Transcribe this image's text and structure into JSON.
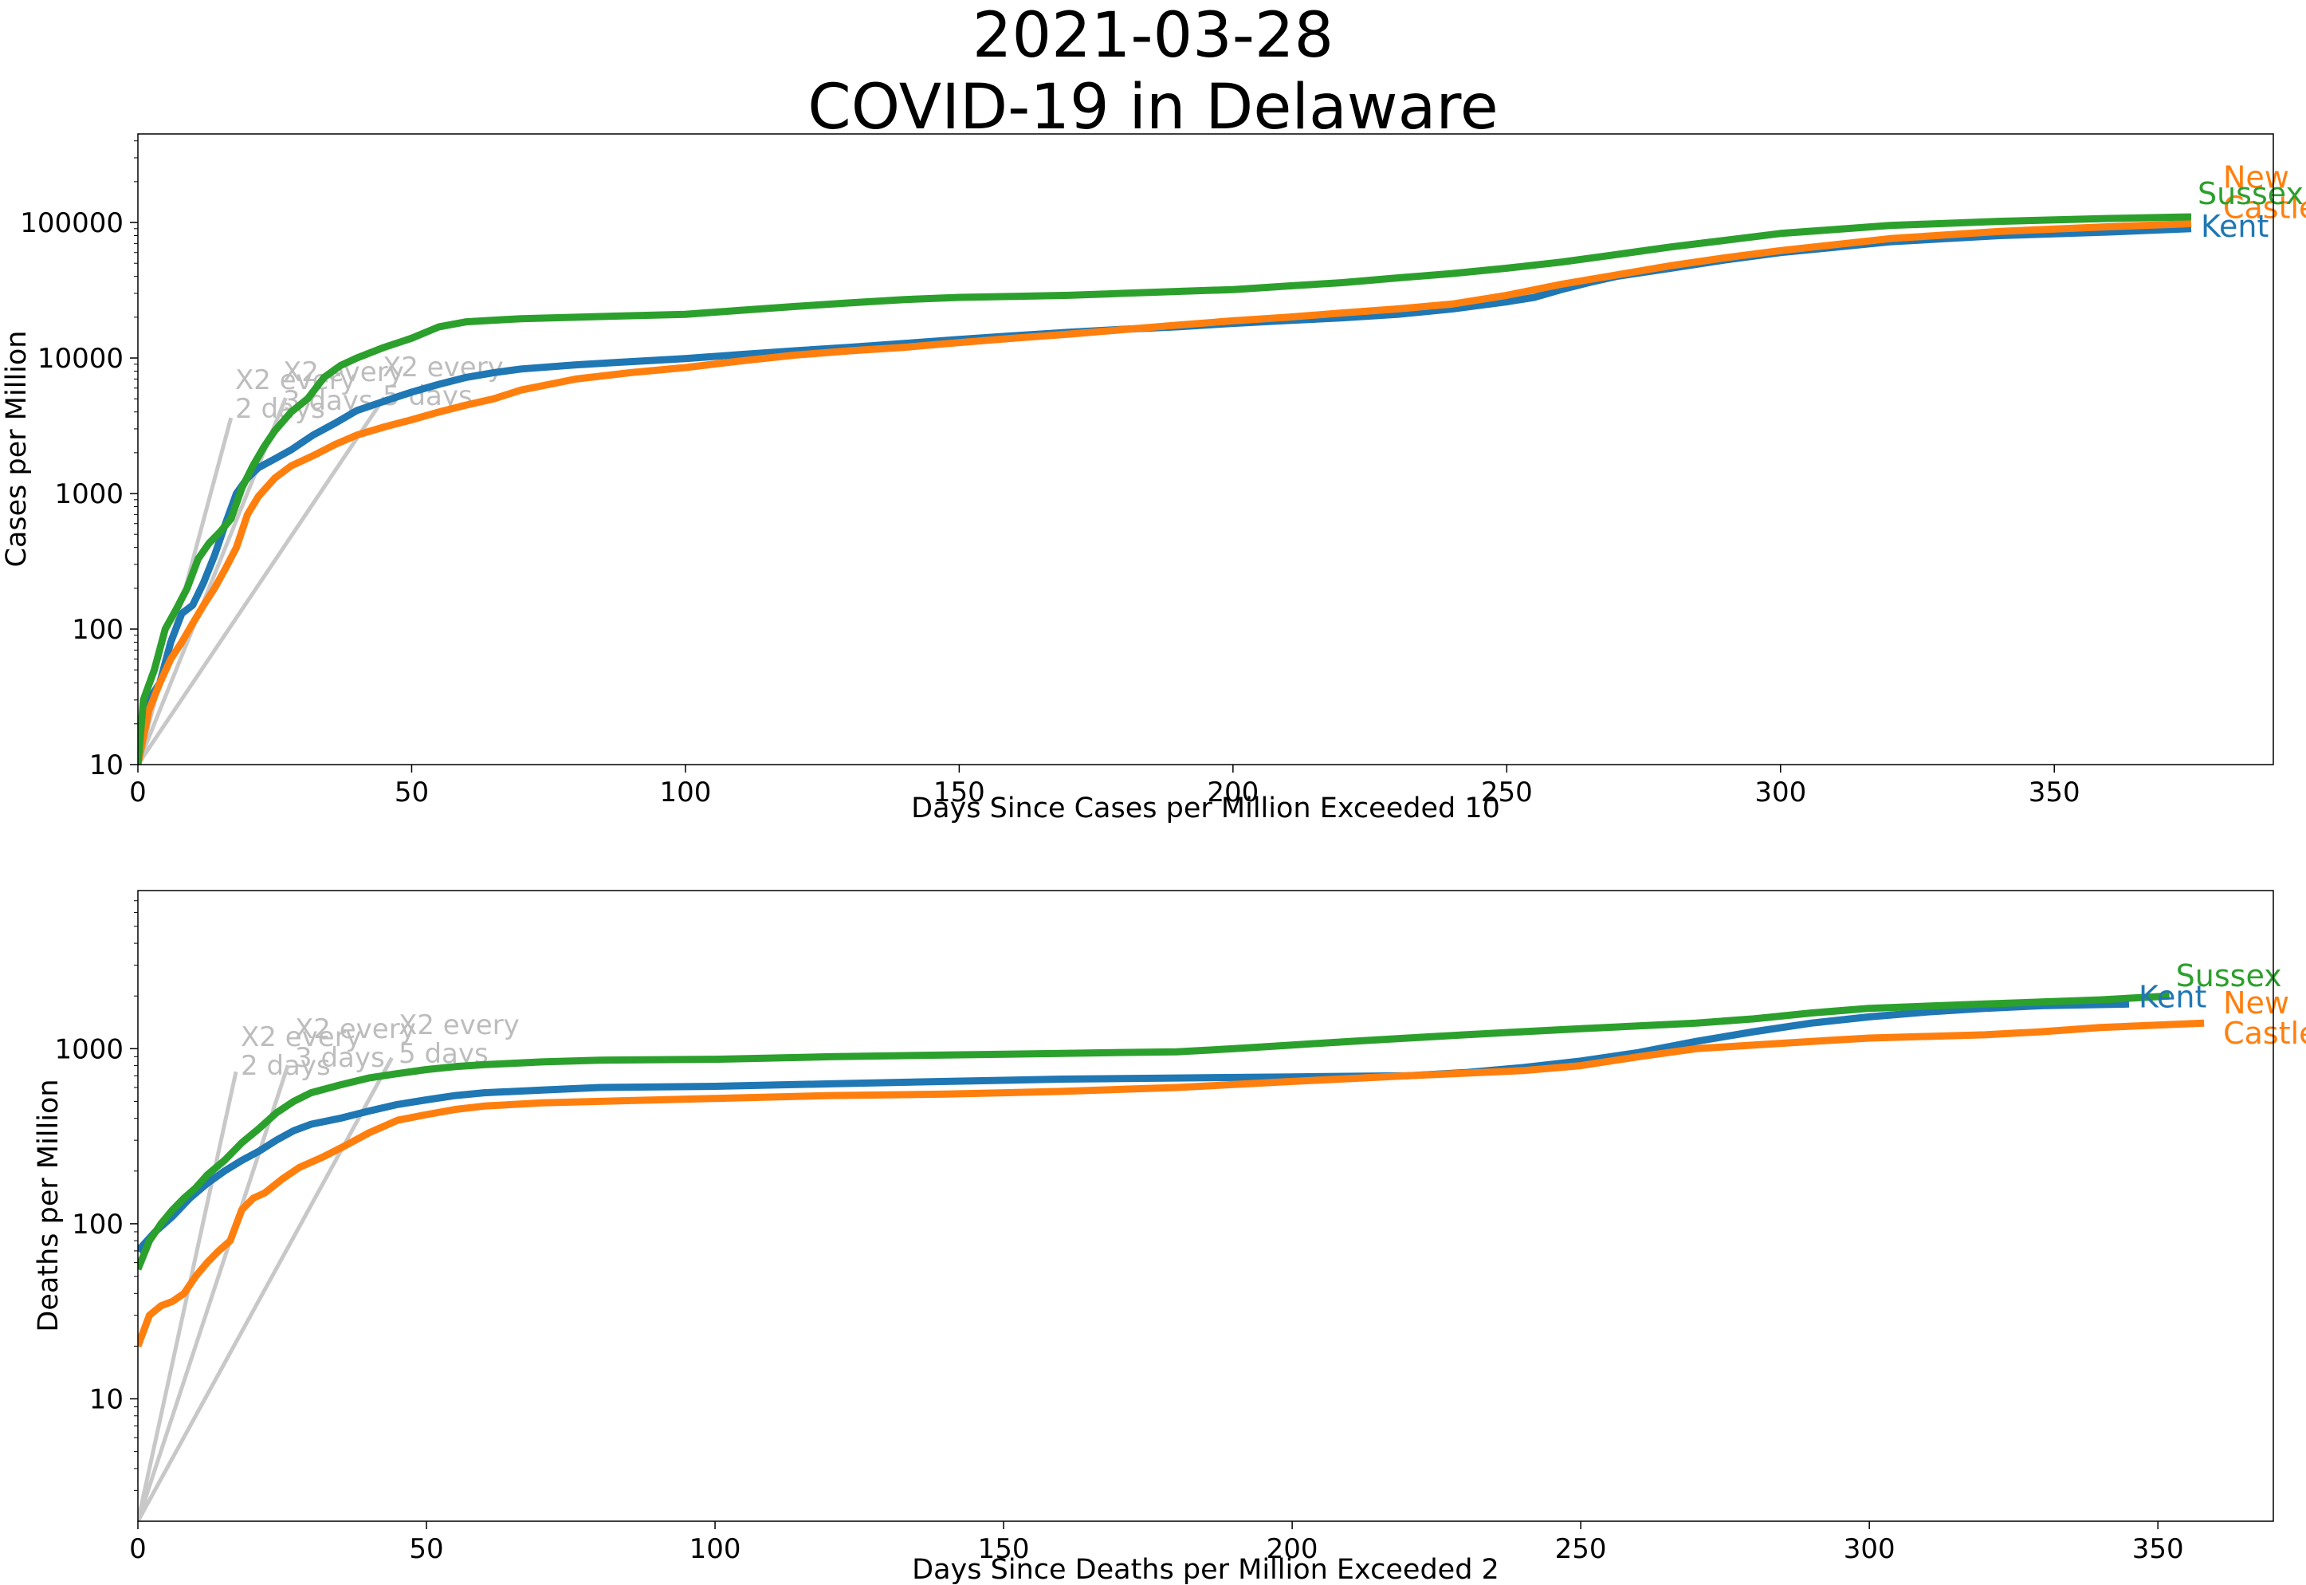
{
  "title_line1": "2021-03-28",
  "title_line2": "COVID-19 in Delaware",
  "colors": {
    "Kent": "#1f77b4",
    "New Castle": "#ff7f0e",
    "Sussex": "#2ca02c",
    "guide": "#c8c8c8"
  },
  "chart_data": [
    {
      "type": "line",
      "xlabel": "Days Since Cases per Million Exceeded 10",
      "ylabel": "Cases per Million",
      "yscale": "log",
      "xlim": [
        0,
        390
      ],
      "ylim": [
        10,
        450000
      ],
      "xticks": [
        0,
        50,
        100,
        150,
        200,
        250,
        300,
        350
      ],
      "yticks": [
        10,
        100,
        1000,
        10000,
        100000
      ],
      "grid": false,
      "guides": [
        {
          "label": "X2 every\n2 days",
          "x": [
            0,
            17
          ],
          "y": [
            10,
            3620
          ]
        },
        {
          "label": "X2 every\n3 days",
          "x": [
            0,
            27
          ],
          "y": [
            10,
            5080
          ]
        },
        {
          "label": "X2 every\n5 days",
          "x": [
            0,
            45
          ],
          "y": [
            10,
            5120
          ]
        }
      ],
      "series": [
        {
          "name": "Kent",
          "x": [
            0,
            2,
            4,
            6,
            8,
            10,
            12,
            14,
            16,
            18,
            20,
            22,
            25,
            28,
            32,
            36,
            40,
            45,
            50,
            55,
            60,
            65,
            70,
            80,
            90,
            100,
            110,
            120,
            130,
            140,
            150,
            160,
            170,
            180,
            190,
            200,
            210,
            220,
            230,
            240,
            250,
            255,
            260,
            265,
            270,
            280,
            290,
            300,
            320,
            340,
            360,
            375
          ],
          "y": [
            10,
            30,
            40,
            80,
            130,
            150,
            220,
            350,
            600,
            1000,
            1300,
            1550,
            1800,
            2100,
            2700,
            3300,
            4100,
            4800,
            5600,
            6400,
            7200,
            7800,
            8300,
            8900,
            9400,
            9900,
            10600,
            11300,
            12000,
            12800,
            13700,
            14600,
            15500,
            16300,
            17000,
            18000,
            18900,
            19800,
            21000,
            23000,
            26000,
            28000,
            32000,
            36000,
            40000,
            46000,
            53000,
            60000,
            72000,
            80000,
            85000,
            90000
          ]
        },
        {
          "name": "New Castle",
          "x": [
            0,
            2,
            4,
            6,
            8,
            10,
            12,
            14,
            16,
            18,
            20,
            22,
            25,
            28,
            32,
            36,
            40,
            45,
            50,
            55,
            60,
            65,
            70,
            80,
            90,
            100,
            110,
            120,
            130,
            140,
            150,
            160,
            170,
            180,
            190,
            200,
            210,
            220,
            230,
            240,
            250,
            260,
            270,
            280,
            290,
            300,
            320,
            340,
            360,
            375
          ],
          "y": [
            10,
            25,
            40,
            60,
            80,
            110,
            150,
            200,
            280,
            400,
            700,
            950,
            1300,
            1600,
            1900,
            2300,
            2700,
            3100,
            3500,
            4000,
            4500,
            5000,
            5800,
            7000,
            7800,
            8500,
            9500,
            10500,
            11300,
            12000,
            13000,
            14000,
            15000,
            16200,
            17500,
            18800,
            20000,
            21500,
            23000,
            25000,
            29000,
            35000,
            41000,
            48000,
            55000,
            62000,
            76000,
            86000,
            93000,
            98000
          ]
        },
        {
          "name": "Sussex",
          "x": [
            0,
            1,
            3,
            5,
            7,
            9,
            11,
            13,
            15,
            17,
            19,
            21,
            23,
            25,
            28,
            31,
            34,
            37,
            40,
            45,
            50,
            55,
            60,
            65,
            70,
            80,
            90,
            100,
            110,
            120,
            130,
            140,
            150,
            160,
            170,
            180,
            190,
            200,
            210,
            220,
            230,
            240,
            250,
            260,
            270,
            280,
            290,
            300,
            320,
            340,
            360,
            375
          ],
          "y": [
            10,
            30,
            50,
            100,
            140,
            200,
            330,
            430,
            520,
            650,
            1100,
            1600,
            2200,
            2900,
            4000,
            5000,
            7200,
            8800,
            10000,
            12000,
            14000,
            17000,
            18500,
            19000,
            19500,
            20000,
            20500,
            21000,
            22500,
            24000,
            25500,
            27000,
            28000,
            28500,
            29000,
            30000,
            31000,
            32000,
            34000,
            36000,
            39000,
            42000,
            46000,
            51000,
            58000,
            66000,
            74000,
            83000,
            95000,
            102000,
            107000,
            110000
          ]
        }
      ],
      "end_labels": [
        {
          "series": "New Castle",
          "text": "New\nCastle"
        },
        {
          "series": "Sussex",
          "text": "Sussex"
        },
        {
          "series": "Kent",
          "text": "Kent"
        }
      ]
    },
    {
      "type": "line",
      "xlabel": "Days Since Deaths per Million Exceeded 2",
      "ylabel": "Deaths per Million",
      "yscale": "log",
      "xlim": [
        0,
        370
      ],
      "ylim": [
        2,
        8000
      ],
      "xticks": [
        0,
        50,
        100,
        150,
        200,
        250,
        300,
        350
      ],
      "yticks": [
        10,
        100,
        1000
      ],
      "grid": false,
      "guides": [
        {
          "label": "X2 every\n2 days",
          "x": [
            0,
            17
          ],
          "y": [
            2,
            739
          ]
        },
        {
          "label": "X2 every\n3 days",
          "x": [
            0,
            26
          ],
          "y": [
            2,
            805
          ]
        },
        {
          "label": "X2 every\n5 days",
          "x": [
            0,
            44
          ],
          "y": [
            2,
            886
          ]
        }
      ],
      "series": [
        {
          "name": "Kent",
          "x": [
            0,
            3,
            6,
            9,
            12,
            15,
            18,
            21,
            24,
            27,
            30,
            35,
            40,
            45,
            50,
            55,
            60,
            70,
            80,
            100,
            120,
            140,
            160,
            180,
            200,
            220,
            230,
            240,
            250,
            260,
            270,
            280,
            290,
            300,
            310,
            320,
            330,
            345
          ],
          "y": [
            70,
            90,
            110,
            140,
            170,
            200,
            230,
            260,
            300,
            340,
            370,
            400,
            440,
            480,
            510,
            540,
            560,
            580,
            600,
            610,
            630,
            650,
            670,
            680,
            690,
            700,
            730,
            780,
            850,
            950,
            1100,
            1250,
            1400,
            1520,
            1620,
            1700,
            1760,
            1800
          ]
        },
        {
          "name": "New Castle",
          "x": [
            0,
            2,
            4,
            6,
            8,
            10,
            12,
            14,
            16,
            18,
            20,
            22,
            25,
            28,
            32,
            36,
            40,
            45,
            50,
            55,
            60,
            70,
            80,
            100,
            120,
            140,
            160,
            180,
            200,
            220,
            240,
            250,
            260,
            270,
            280,
            290,
            300,
            320,
            330,
            340,
            358
          ],
          "y": [
            20,
            30,
            34,
            36,
            40,
            50,
            60,
            70,
            80,
            120,
            140,
            150,
            180,
            210,
            240,
            280,
            330,
            390,
            420,
            450,
            470,
            490,
            500,
            520,
            540,
            550,
            570,
            600,
            650,
            700,
            750,
            800,
            900,
            1000,
            1050,
            1100,
            1150,
            1200,
            1250,
            1320,
            1400
          ]
        },
        {
          "name": "Sussex",
          "x": [
            0,
            2,
            4,
            6,
            8,
            10,
            12,
            15,
            18,
            21,
            24,
            27,
            30,
            35,
            40,
            45,
            50,
            55,
            60,
            70,
            80,
            100,
            120,
            140,
            160,
            180,
            190,
            200,
            210,
            220,
            230,
            240,
            250,
            260,
            270,
            280,
            290,
            300,
            320,
            340,
            352
          ],
          "y": [
            55,
            80,
            100,
            120,
            140,
            160,
            190,
            230,
            290,
            350,
            430,
            500,
            560,
            620,
            680,
            720,
            760,
            790,
            810,
            840,
            860,
            870,
            900,
            920,
            940,
            960,
            1000,
            1050,
            1100,
            1150,
            1200,
            1250,
            1300,
            1350,
            1400,
            1480,
            1600,
            1700,
            1800,
            1900,
            2000
          ]
        }
      ],
      "end_labels": [
        {
          "series": "Sussex",
          "text": "Sussex"
        },
        {
          "series": "New Castle",
          "text": "New\nCastle"
        },
        {
          "series": "Kent",
          "text": "Kent"
        }
      ]
    }
  ]
}
